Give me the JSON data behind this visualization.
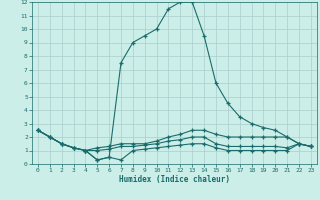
{
  "xlabel": "Humidex (Indice chaleur)",
  "ylabel": "",
  "background_color": "#cceee8",
  "grid_color": "#aacccc",
  "line_color": "#1a6b6b",
  "xlim": [
    -0.5,
    23.5
  ],
  "ylim": [
    0,
    12
  ],
  "xticks": [
    0,
    1,
    2,
    3,
    4,
    5,
    6,
    7,
    8,
    9,
    10,
    11,
    12,
    13,
    14,
    15,
    16,
    17,
    18,
    19,
    20,
    21,
    22,
    23
  ],
  "yticks": [
    0,
    1,
    2,
    3,
    4,
    5,
    6,
    7,
    8,
    9,
    10,
    11,
    12
  ],
  "series": [
    {
      "x": [
        0,
        1,
        2,
        3,
        4,
        5,
        6,
        7,
        8,
        9,
        10,
        11,
        12,
        13,
        14,
        15,
        16,
        17,
        18,
        19,
        20,
        21,
        22,
        23
      ],
      "y": [
        2.5,
        2.0,
        1.5,
        1.2,
        1.0,
        0.3,
        0.5,
        7.5,
        9.0,
        9.5,
        10.0,
        11.5,
        12.0,
        12.0,
        9.5,
        6.0,
        4.5,
        3.5,
        3.0,
        2.7,
        2.5,
        2.0,
        1.5,
        1.3
      ]
    },
    {
      "x": [
        0,
        1,
        2,
        3,
        4,
        5,
        6,
        7,
        8,
        9,
        10,
        11,
        12,
        13,
        14,
        15,
        16,
        17,
        18,
        19,
        20,
        21,
        22,
        23
      ],
      "y": [
        2.5,
        2.0,
        1.5,
        1.2,
        1.0,
        1.2,
        1.3,
        1.5,
        1.5,
        1.5,
        1.7,
        2.0,
        2.2,
        2.5,
        2.5,
        2.2,
        2.0,
        2.0,
        2.0,
        2.0,
        2.0,
        2.0,
        1.5,
        1.3
      ]
    },
    {
      "x": [
        0,
        1,
        2,
        3,
        4,
        5,
        6,
        7,
        8,
        9,
        10,
        11,
        12,
        13,
        14,
        15,
        16,
        17,
        18,
        19,
        20,
        21,
        22,
        23
      ],
      "y": [
        2.5,
        2.0,
        1.5,
        1.2,
        1.0,
        1.0,
        1.1,
        1.3,
        1.3,
        1.4,
        1.5,
        1.7,
        1.8,
        2.0,
        2.0,
        1.5,
        1.3,
        1.3,
        1.3,
        1.3,
        1.3,
        1.2,
        1.5,
        1.3
      ]
    },
    {
      "x": [
        0,
        1,
        2,
        3,
        4,
        5,
        6,
        7,
        8,
        9,
        10,
        11,
        12,
        13,
        14,
        15,
        16,
        17,
        18,
        19,
        20,
        21,
        22,
        23
      ],
      "y": [
        2.5,
        2.0,
        1.5,
        1.2,
        1.0,
        0.3,
        0.5,
        0.3,
        1.0,
        1.1,
        1.2,
        1.3,
        1.4,
        1.5,
        1.5,
        1.2,
        1.0,
        1.0,
        1.0,
        1.0,
        1.0,
        1.0,
        1.5,
        1.3
      ]
    }
  ]
}
